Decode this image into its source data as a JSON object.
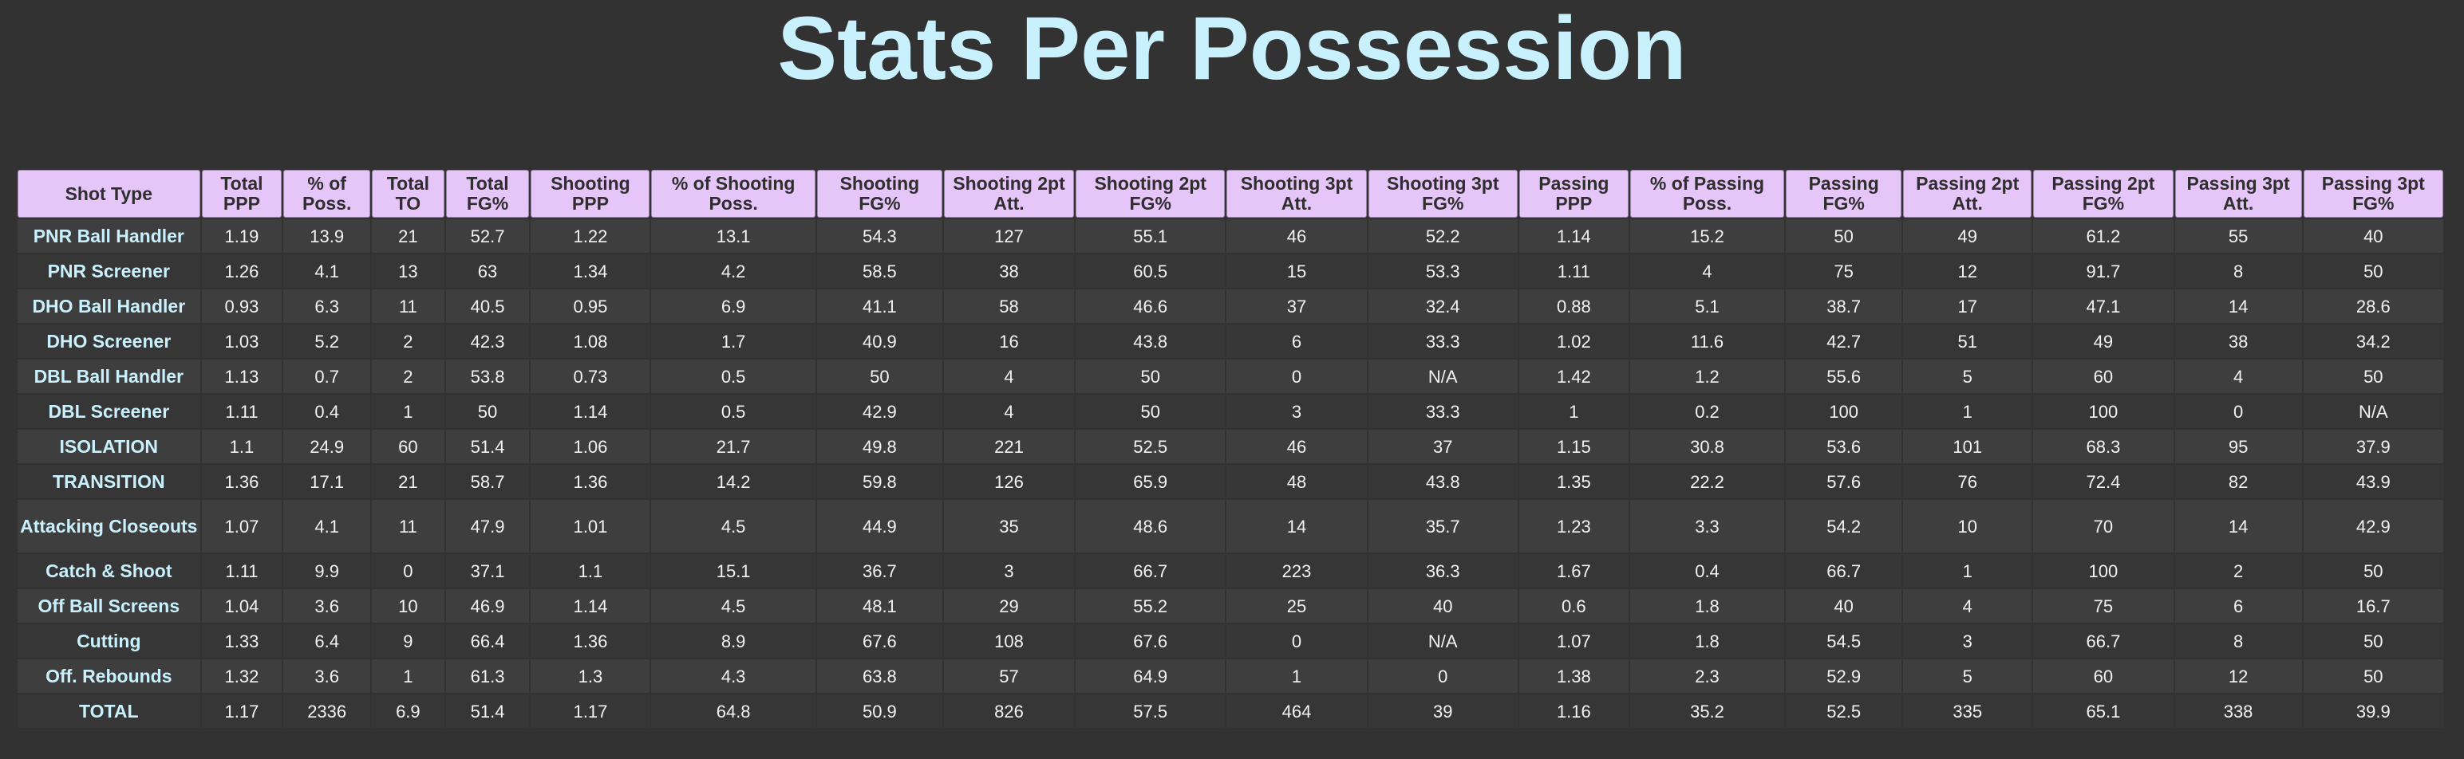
{
  "page": {
    "title": "Stats Per Possession"
  },
  "chart_data": {
    "type": "table",
    "title": "Stats Per Possession",
    "columns": [
      "Shot Type",
      "Total PPP",
      "% of Poss.",
      "Total TO",
      "Total FG%",
      "Shooting PPP",
      "% of Shooting Poss.",
      "Shooting FG%",
      "Shooting 2pt Att.",
      "Shooting 2pt FG%",
      "Shooting 3pt Att.",
      "Shooting 3pt FG%",
      "Passing PPP",
      "% of Passing Poss.",
      "Passing FG%",
      "Passing 2pt Att.",
      "Passing 2pt FG%",
      "Passing 3pt Att.",
      "Passing 3pt FG%"
    ],
    "rows": [
      [
        "PNR Ball Handler",
        "1.19",
        "13.9",
        "21",
        "52.7",
        "1.22",
        "13.1",
        "54.3",
        "127",
        "55.1",
        "46",
        "52.2",
        "1.14",
        "15.2",
        "50",
        "49",
        "61.2",
        "55",
        "40"
      ],
      [
        "PNR Screener",
        "1.26",
        "4.1",
        "13",
        "63",
        "1.34",
        "4.2",
        "58.5",
        "38",
        "60.5",
        "15",
        "53.3",
        "1.11",
        "4",
        "75",
        "12",
        "91.7",
        "8",
        "50"
      ],
      [
        "DHO Ball Handler",
        "0.93",
        "6.3",
        "11",
        "40.5",
        "0.95",
        "6.9",
        "41.1",
        "58",
        "46.6",
        "37",
        "32.4",
        "0.88",
        "5.1",
        "38.7",
        "17",
        "47.1",
        "14",
        "28.6"
      ],
      [
        "DHO Screener",
        "1.03",
        "5.2",
        "2",
        "42.3",
        "1.08",
        "1.7",
        "40.9",
        "16",
        "43.8",
        "6",
        "33.3",
        "1.02",
        "11.6",
        "42.7",
        "51",
        "49",
        "38",
        "34.2"
      ],
      [
        "DBL Ball Handler",
        "1.13",
        "0.7",
        "2",
        "53.8",
        "0.73",
        "0.5",
        "50",
        "4",
        "50",
        "0",
        "N/A",
        "1.42",
        "1.2",
        "55.6",
        "5",
        "60",
        "4",
        "50"
      ],
      [
        "DBL Screener",
        "1.11",
        "0.4",
        "1",
        "50",
        "1.14",
        "0.5",
        "42.9",
        "4",
        "50",
        "3",
        "33.3",
        "1",
        "0.2",
        "100",
        "1",
        "100",
        "0",
        "N/A"
      ],
      [
        "ISOLATION",
        "1.1",
        "24.9",
        "60",
        "51.4",
        "1.06",
        "21.7",
        "49.8",
        "221",
        "52.5",
        "46",
        "37",
        "1.15",
        "30.8",
        "53.6",
        "101",
        "68.3",
        "95",
        "37.9"
      ],
      [
        "TRANSITION",
        "1.36",
        "17.1",
        "21",
        "58.7",
        "1.36",
        "14.2",
        "59.8",
        "126",
        "65.9",
        "48",
        "43.8",
        "1.35",
        "22.2",
        "57.6",
        "76",
        "72.4",
        "82",
        "43.9"
      ],
      [
        "Attacking Closeouts",
        "1.07",
        "4.1",
        "11",
        "47.9",
        "1.01",
        "4.5",
        "44.9",
        "35",
        "48.6",
        "14",
        "35.7",
        "1.23",
        "3.3",
        "54.2",
        "10",
        "70",
        "14",
        "42.9"
      ],
      [
        "Catch & Shoot",
        "1.11",
        "9.9",
        "0",
        "37.1",
        "1.1",
        "15.1",
        "36.7",
        "3",
        "66.7",
        "223",
        "36.3",
        "1.67",
        "0.4",
        "66.7",
        "1",
        "100",
        "2",
        "50"
      ],
      [
        "Off Ball Screens",
        "1.04",
        "3.6",
        "10",
        "46.9",
        "1.14",
        "4.5",
        "48.1",
        "29",
        "55.2",
        "25",
        "40",
        "0.6",
        "1.8",
        "40",
        "4",
        "75",
        "6",
        "16.7"
      ],
      [
        "Cutting",
        "1.33",
        "6.4",
        "9",
        "66.4",
        "1.36",
        "8.9",
        "67.6",
        "108",
        "67.6",
        "0",
        "N/A",
        "1.07",
        "1.8",
        "54.5",
        "3",
        "66.7",
        "8",
        "50"
      ],
      [
        "Off. Rebounds",
        "1.32",
        "3.6",
        "1",
        "61.3",
        "1.3",
        "4.3",
        "63.8",
        "57",
        "64.9",
        "1",
        "0",
        "1.38",
        "2.3",
        "52.9",
        "5",
        "60",
        "12",
        "50"
      ],
      [
        "TOTAL",
        "1.17",
        "2336",
        "6.9",
        "51.4",
        "1.17",
        "64.8",
        "50.9",
        "826",
        "57.5",
        "464",
        "39",
        "1.16",
        "35.2",
        "52.5",
        "335",
        "65.1",
        "338",
        "39.9"
      ]
    ]
  },
  "colors": {
    "background": "#323232",
    "title": "#c9f1fd",
    "header_fill": "#e6c5f9",
    "header_text": "#2e2e2e",
    "row_label": "#c9f1fd",
    "cell_text": "#f2f2f2",
    "row_odd": "#3e3e3e",
    "row_even": "#363636"
  }
}
